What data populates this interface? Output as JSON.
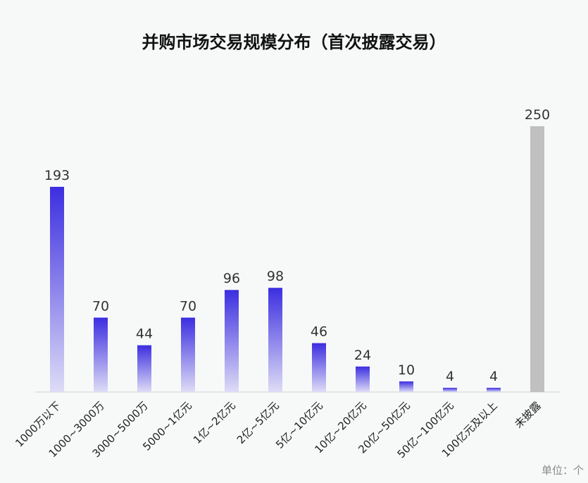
{
  "title": "并购市场交易规模分布（首次披露交易）",
  "unit_label": "单位：个",
  "colors": {
    "bar_top": "#3c2ee0",
    "bar_bottom": "#dedcf6",
    "undisclosed": "#c0c0c0",
    "axis": "#cfcfcf"
  },
  "chart_data": {
    "type": "bar",
    "categories": [
      "1000万以下",
      "1000~3000万",
      "3000~5000万",
      "5000~1亿元",
      "1亿~2亿元",
      "2亿~5亿元",
      "5亿~10亿元",
      "10亿~20亿元",
      "20亿~50亿元",
      "50亿~100亿元",
      "100亿元及以上",
      "未披露"
    ],
    "values": [
      193,
      70,
      44,
      70,
      96,
      98,
      46,
      24,
      10,
      4,
      4,
      250
    ],
    "ylim": [
      0,
      250
    ],
    "title": "并购市场交易规模分布（首次披露交易）",
    "xlabel": "",
    "ylabel": "",
    "grid": false,
    "legend": "none"
  }
}
